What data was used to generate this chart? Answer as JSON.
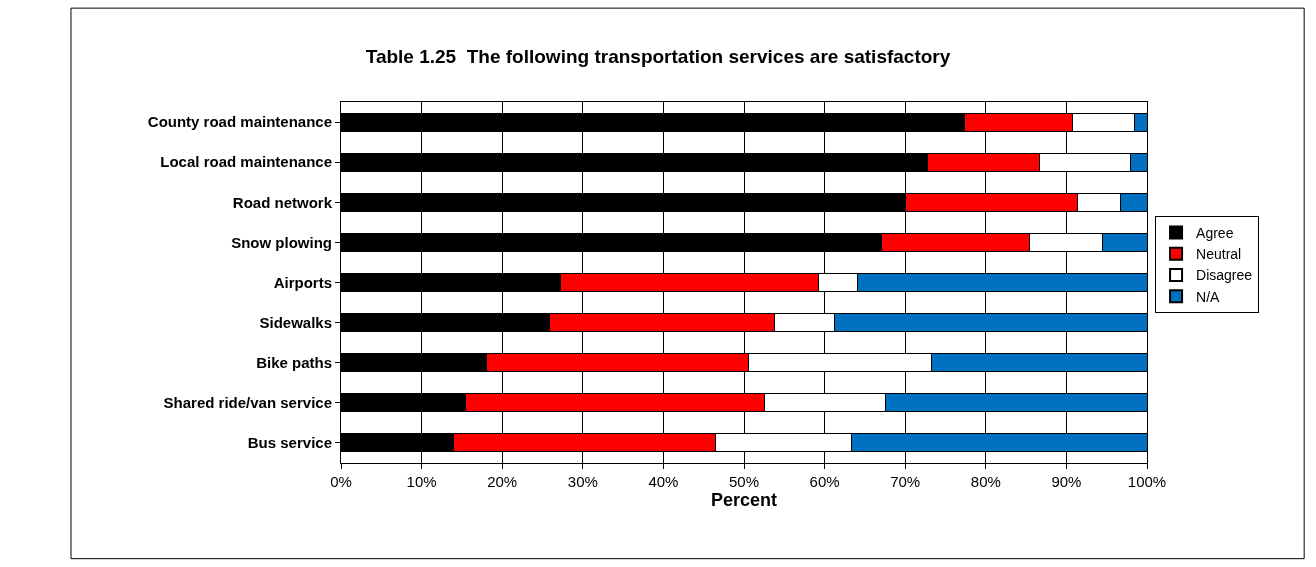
{
  "chart_data": {
    "type": "bar",
    "orientation": "horizontal",
    "stacked": true,
    "title": "Table 1.25  The following transportation services are satisfactory",
    "xlabel": "Percent",
    "categories": [
      "County road maintenance",
      "Local road maintenance",
      "Road network",
      "Snow plowing",
      "Airports",
      "Sidewalks",
      "Bike paths",
      "Shared ride/van service",
      "Bus service"
    ],
    "series": [
      {
        "name": "Agree",
        "color": "#000000",
        "values": [
          77.3,
          72.8,
          70.0,
          67.1,
          27.2,
          25.9,
          18.0,
          15.5,
          13.9
        ]
      },
      {
        "name": "Neutral",
        "color": "#ff0000",
        "values": [
          13.4,
          13.8,
          21.4,
          18.3,
          32.0,
          27.9,
          32.5,
          37.1,
          32.6
        ]
      },
      {
        "name": "Disagree",
        "color": "#ffffff",
        "values": [
          7.8,
          11.4,
          5.3,
          9.1,
          4.9,
          7.4,
          22.8,
          15.0,
          16.8
        ]
      },
      {
        "name": "N/A",
        "color": "#0070c0",
        "values": [
          1.5,
          2.0,
          3.3,
          5.5,
          35.9,
          38.8,
          26.7,
          32.4,
          36.7
        ]
      }
    ],
    "xlim": [
      0,
      100
    ],
    "xticks": [
      {
        "value": 0,
        "label": "0%"
      },
      {
        "value": 10,
        "label": "10%"
      },
      {
        "value": 20,
        "label": "20%"
      },
      {
        "value": 30,
        "label": "30%"
      },
      {
        "value": 40,
        "label": "40%"
      },
      {
        "value": 50,
        "label": "50%"
      },
      {
        "value": 60,
        "label": "60%"
      },
      {
        "value": 70,
        "label": "70%"
      },
      {
        "value": 80,
        "label": "80%"
      },
      {
        "value": 90,
        "label": "90%"
      },
      {
        "value": 100,
        "label": "100%"
      }
    ],
    "grid": "x",
    "legend": "right"
  }
}
